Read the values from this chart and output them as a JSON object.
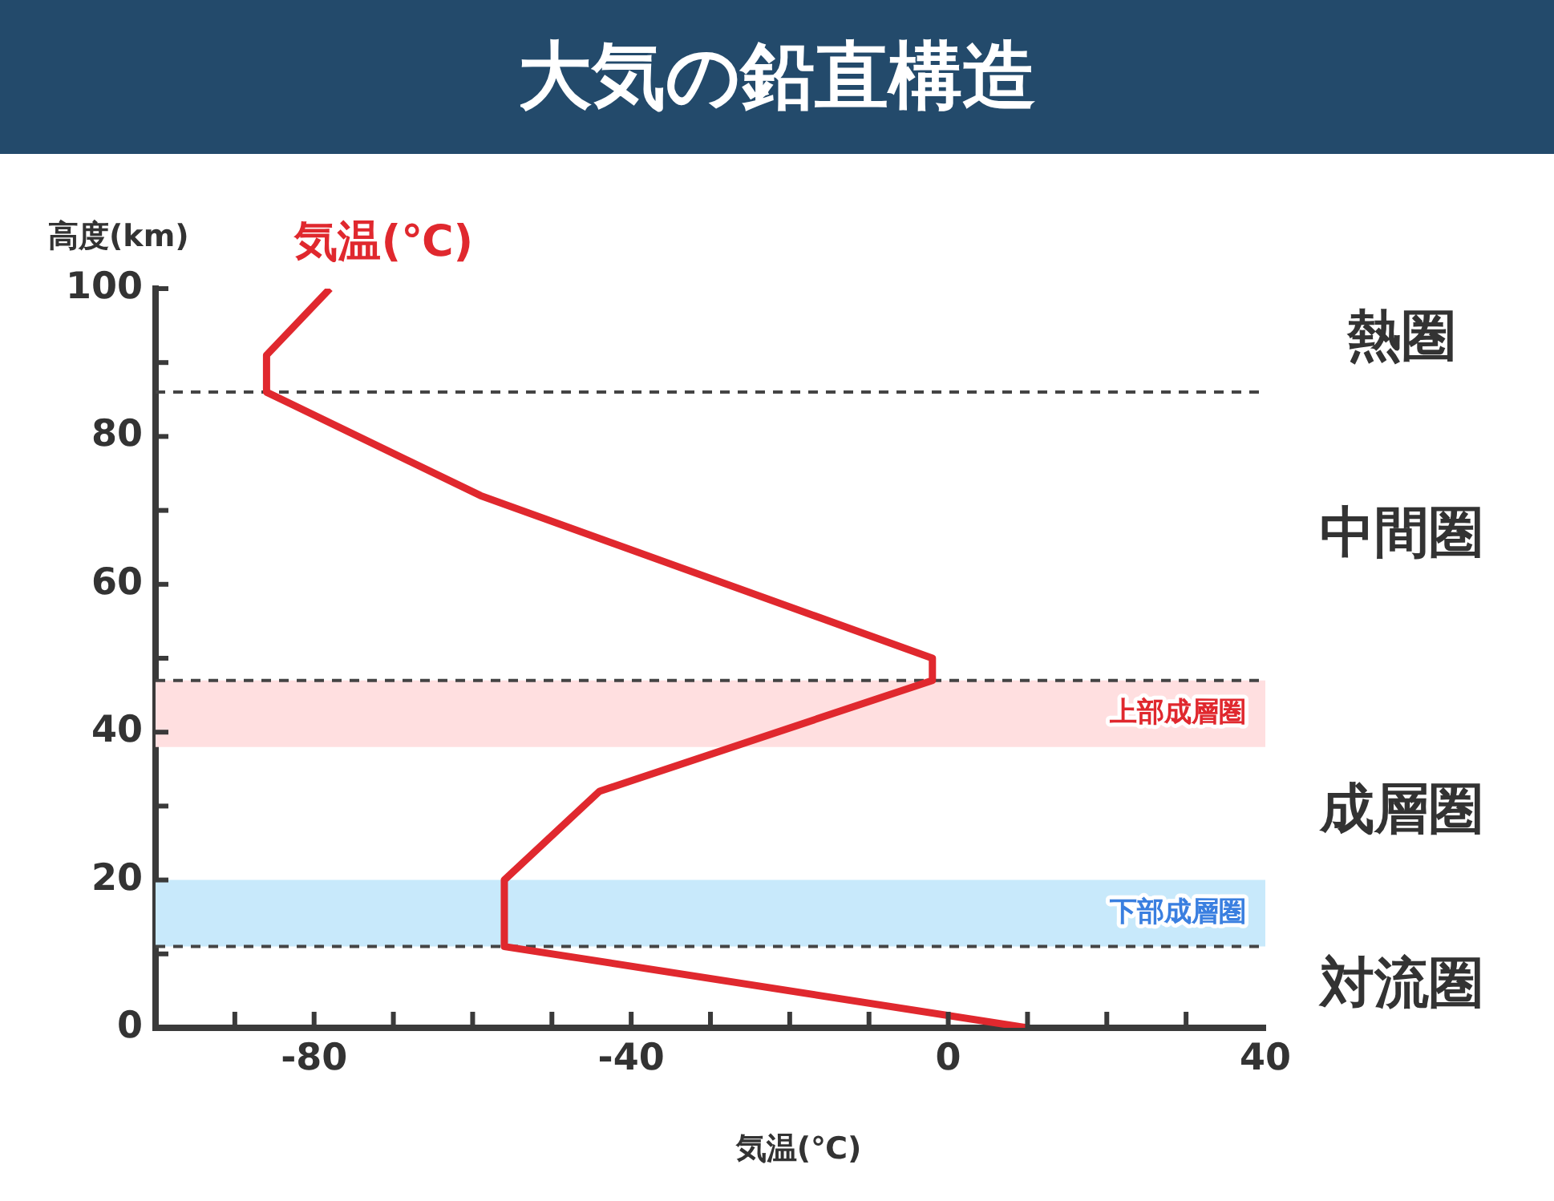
{
  "chart_data": {
    "type": "line",
    "title": "大気の鉛直構造",
    "xlabel": "気温(℃)",
    "ylabel": "高度(km)",
    "series": [
      {
        "name": "気温(℃)",
        "color": "#e0282e",
        "x": [
          -78,
          -86,
          -86,
          -59,
          -2,
          -2,
          -44,
          -56,
          -56,
          10
        ],
        "values": [
          100,
          91,
          86,
          72,
          50,
          47,
          32,
          20,
          11,
          0
        ]
      }
    ],
    "xlim": [
      -100,
      40
    ],
    "xticks": [
      {
        "value": -90,
        "label": null
      },
      -80,
      {
        "value": -70,
        "label": null
      },
      {
        "value": -60,
        "label": null
      },
      {
        "value": -50,
        "label": null
      },
      -40,
      {
        "value": -30,
        "label": null
      },
      {
        "value": -20,
        "label": null
      },
      {
        "value": -10,
        "label": null
      },
      0,
      {
        "value": 10,
        "label": null
      },
      {
        "value": 20,
        "label": null
      },
      {
        "value": 30,
        "label": null
      },
      40
    ],
    "ylim": [
      0,
      100
    ],
    "yticks": [
      0,
      {
        "value": 10,
        "label": null
      },
      20,
      {
        "value": 30,
        "label": null
      },
      40,
      {
        "value": 50,
        "label": null
      },
      60,
      {
        "value": 70,
        "label": null
      },
      80,
      {
        "value": 90,
        "label": null
      },
      100
    ],
    "marker": "none",
    "line_style": "solid",
    "ref_lines": [
      {
        "axis": "y",
        "value": 86,
        "color": "#444444",
        "line_style": "dashed"
      },
      {
        "axis": "y",
        "value": 47,
        "color": "#444444",
        "line_style": "dashed"
      },
      {
        "axis": "y",
        "value": 11,
        "color": "#444444",
        "line_style": "dashed"
      }
    ],
    "bands": [
      {
        "axis": "y",
        "from": 38,
        "to": 47,
        "label": "上部成層圏",
        "color": "#ffdfe0"
      },
      {
        "axis": "y",
        "from": 11,
        "to": 20,
        "label": "下部成層圏",
        "color": "#c8e9fb"
      }
    ],
    "annotations": [
      "熱圏",
      "中間圏",
      "成層圏",
      "対流圏"
    ]
  }
}
